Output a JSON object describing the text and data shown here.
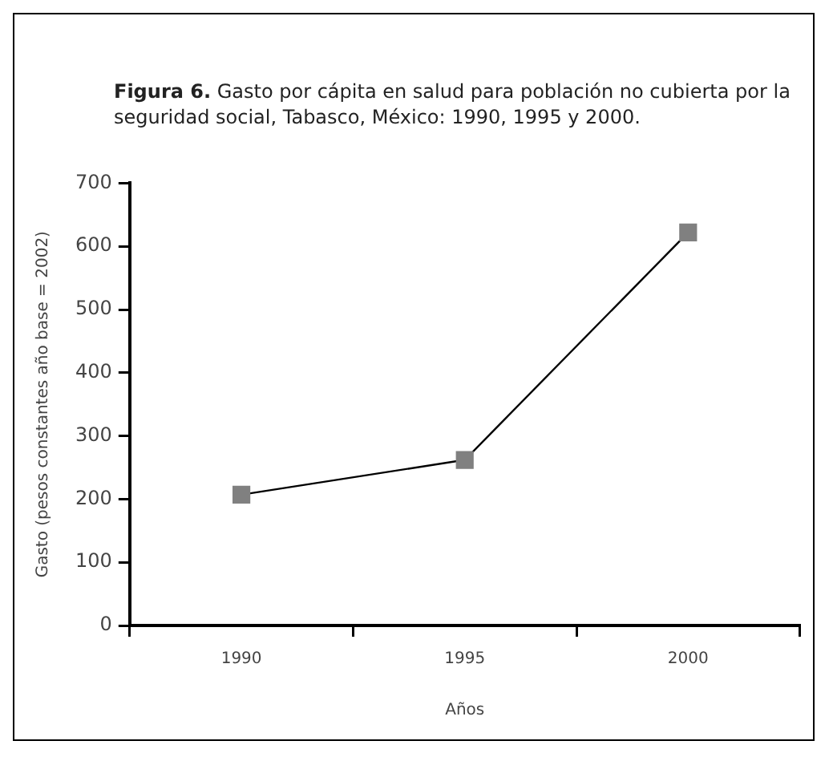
{
  "chart_data": {
    "type": "line",
    "title": "Figura 6. Gasto por cápita en salud para población no cubierta por la seguridad social, Tabasco, México: 1990, 1995 y 2000.",
    "xlabel": "Años",
    "ylabel": "Gasto (pesos constantes año base = 2002)",
    "categories": [
      "1990",
      "1995",
      "2000"
    ],
    "series": [
      {
        "color": "#808080",
        "values": [
          207,
          262,
          622
        ]
      }
    ],
    "ylim": [
      0,
      700
    ],
    "yticks": [
      0,
      100,
      200,
      300,
      400,
      500,
      600,
      700
    ],
    "marker": "square",
    "line_style": "solid",
    "legend": false
  }
}
